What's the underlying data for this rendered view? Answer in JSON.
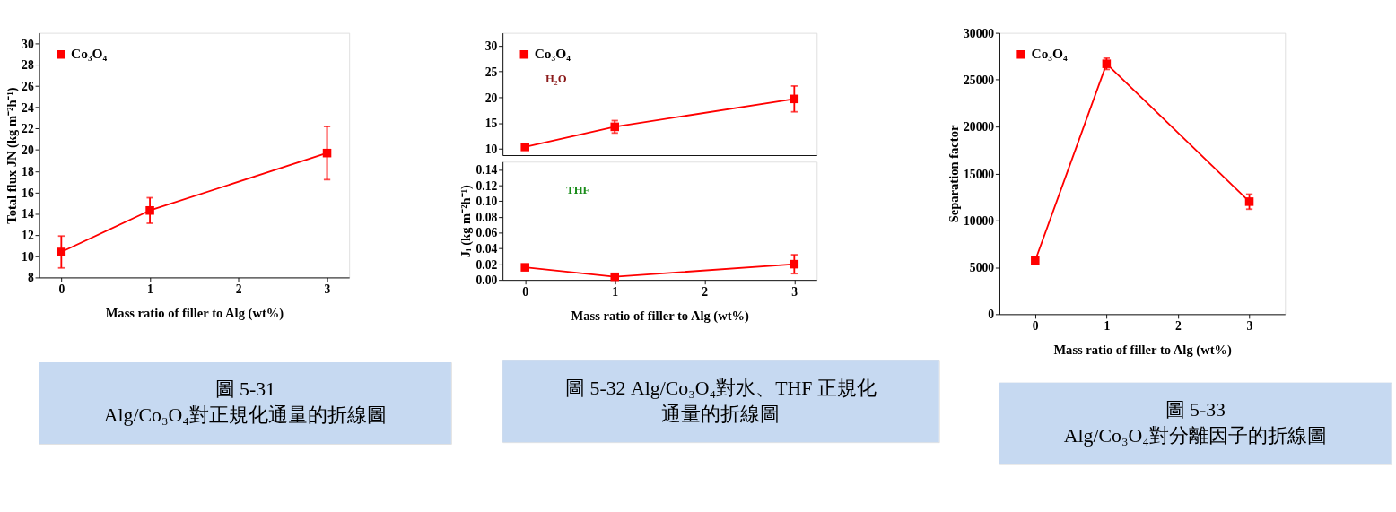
{
  "chart_data": [
    {
      "type": "line",
      "xlabel": "Mass ratio of filler to Alg (wt%)",
      "ylabel": "Total flux JN (kg m⁻²h⁻¹)",
      "x": [
        0,
        1,
        3
      ],
      "xlim": [
        -0.25,
        3.25
      ],
      "xticks": [
        0,
        1,
        2,
        3
      ],
      "ylim": [
        8,
        31
      ],
      "yticks": [
        8,
        10,
        12,
        14,
        16,
        18,
        20,
        22,
        24,
        26,
        28,
        30
      ],
      "marker": "square",
      "line_style": "solid",
      "legend": "top left",
      "series": [
        {
          "name": "Co₃O₄",
          "color": "#ff0000",
          "values": [
            10.4,
            14.3,
            19.7
          ],
          "errors": [
            1.5,
            1.2,
            2.5
          ]
        }
      ],
      "annotations": [
        "圖 5-31",
        "Alg/Co₃O₄對正規化通量的折線圖"
      ]
    },
    {
      "type": "line",
      "x": [
        0,
        1,
        3
      ],
      "xlim": [
        -0.25,
        3.25
      ],
      "xticks": [
        0,
        1,
        2,
        3
      ],
      "ylim": [
        8.8,
        32.5
      ],
      "yticks": [
        10,
        15,
        20,
        25,
        30
      ],
      "marker": "square",
      "line_style": "solid",
      "legend": "top left",
      "tick_labels": "y",
      "series": [
        {
          "name": "Co₃O₄",
          "color": "#ff0000",
          "values": [
            10.4,
            14.3,
            19.7
          ],
          "errors": [
            null,
            1.2,
            2.5
          ]
        }
      ],
      "annotations": [
        "H₂O"
      ]
    },
    {
      "type": "line",
      "xlabel": "Mass ratio of filler to Alg (wt%)",
      "ylabel": "Jᵢ (kg m⁻²h⁻¹)",
      "x": [
        0,
        1,
        3
      ],
      "xlim": [
        -0.25,
        3.25
      ],
      "xticks": [
        0,
        1,
        2,
        3
      ],
      "ylim": [
        0,
        0.15
      ],
      "yticks": [
        {
          "value": 0,
          "label": "0.00"
        },
        {
          "value": 0.02,
          "label": "0.02"
        },
        {
          "value": 0.04,
          "label": "0.04"
        },
        {
          "value": 0.06,
          "label": "0.06"
        },
        {
          "value": 0.08,
          "label": "0.08"
        },
        {
          "value": 0.1,
          "label": "0.10"
        },
        {
          "value": 0.12,
          "label": "0.12"
        },
        {
          "value": 0.14,
          "label": "0.14"
        }
      ],
      "marker": "square",
      "line_style": "solid",
      "series": [
        {
          "color": "#ff0000",
          "values": [
            0.016,
            0.004,
            0.02
          ],
          "errors": [
            null,
            null,
            0.012
          ]
        }
      ],
      "annotations": [
        "THF",
        "圖 5-32 Alg/Co₃O₄對水、THF 正規化",
        "通量的折線圖"
      ]
    },
    {
      "type": "line",
      "xlabel": "Mass ratio of filler to Alg (wt%)",
      "ylabel": "Separation factor",
      "x": [
        0,
        1,
        3
      ],
      "xlim": [
        -0.5,
        3.5
      ],
      "xticks": [
        0,
        1,
        2,
        3
      ],
      "ylim": [
        0,
        30000
      ],
      "yticks": [
        0,
        5000,
        10000,
        15000,
        20000,
        25000,
        30000
      ],
      "marker": "square",
      "line_style": "solid",
      "legend": "top left",
      "series": [
        {
          "name": "Co₃O₄",
          "color": "#ff0000",
          "values": [
            5700,
            26700,
            12000
          ],
          "errors": [
            200,
            600,
            800
          ]
        }
      ],
      "annotations": [
        "圖 5-33",
        "Alg/Co₃O₄對分離因子的折線圖"
      ]
    }
  ]
}
